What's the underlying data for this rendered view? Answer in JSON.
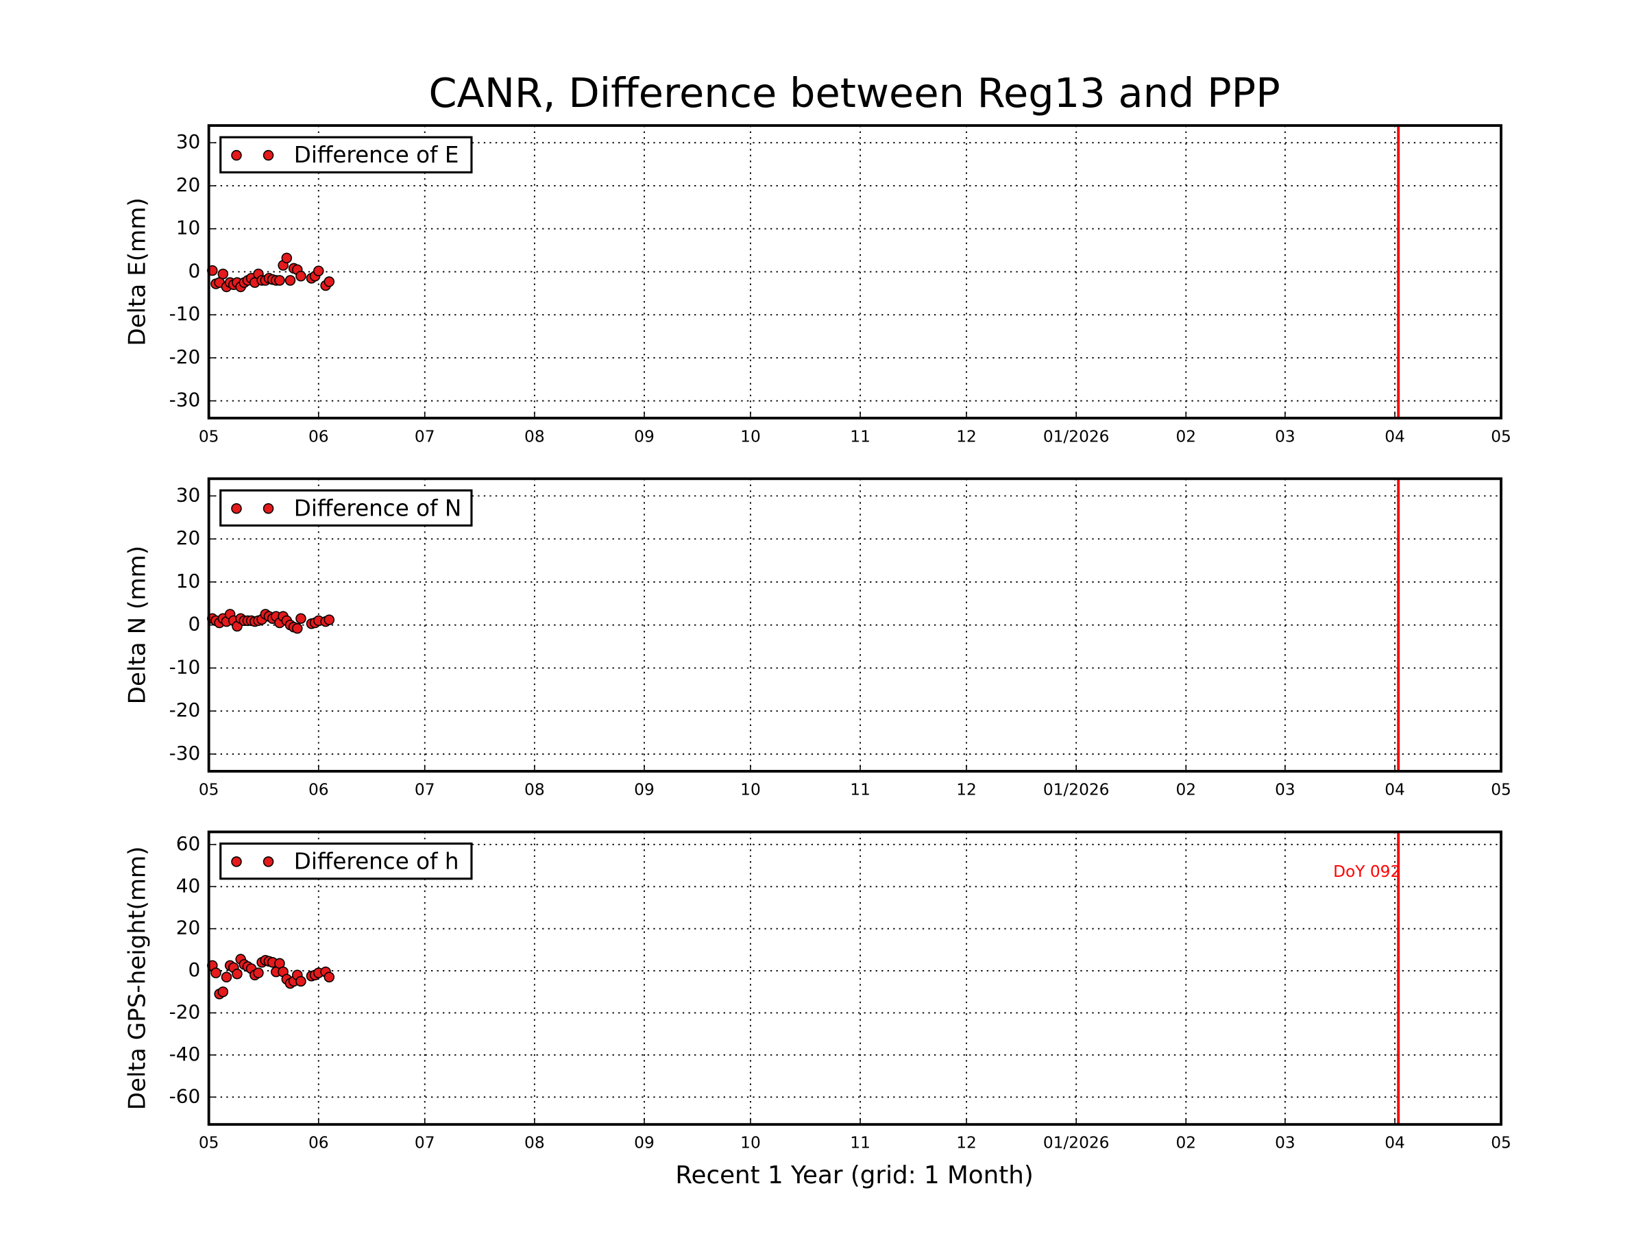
{
  "title": "CANR, Difference between Reg13 and PPP",
  "xlabel": "Recent 1 Year (grid: 1 Month)",
  "chart_data": [
    {
      "type": "scatter",
      "ylabel": "Delta E(mm)",
      "grid": true,
      "legend": "upper left",
      "xlim": [
        0,
        365
      ],
      "ylim": [
        -34,
        34
      ],
      "xticks": [
        {
          "value": 0,
          "label": "05"
        },
        {
          "value": 31,
          "label": "06"
        },
        {
          "value": 61,
          "label": "07"
        },
        {
          "value": 92,
          "label": "08"
        },
        {
          "value": 123,
          "label": "09"
        },
        {
          "value": 153,
          "label": "10"
        },
        {
          "value": 184,
          "label": "11"
        },
        {
          "value": 214,
          "label": "12"
        },
        {
          "value": 245,
          "label": "01/2026"
        },
        {
          "value": 276,
          "label": "02"
        },
        {
          "value": 304,
          "label": "03"
        },
        {
          "value": 335,
          "label": "04"
        },
        {
          "value": 365,
          "label": "05"
        }
      ],
      "yticks": [
        -30,
        -20,
        -10,
        0,
        10,
        20,
        30
      ],
      "vline": {
        "x": 336,
        "color": "#ff0000"
      },
      "series": [
        {
          "name": "Difference of E",
          "color": "#e41a1c",
          "x": [
            1,
            2,
            3,
            4,
            5,
            6,
            7,
            8,
            9,
            10,
            11,
            12,
            13,
            14,
            15,
            16,
            17,
            18,
            19,
            20,
            21,
            22,
            23,
            24,
            25,
            26,
            29,
            30,
            31,
            33,
            34
          ],
          "values": [
            0.3,
            -2.8,
            -2.5,
            -0.5,
            -3.5,
            -2.5,
            -3,
            -2.5,
            -3.5,
            -2.5,
            -2,
            -1.5,
            -2.5,
            -0.5,
            -2,
            -2,
            -1.5,
            -1.8,
            -2,
            -2,
            1.5,
            3.2,
            -2,
            0.8,
            0.5,
            -1,
            -1.5,
            -1,
            0.2,
            -3.2,
            -2.3
          ]
        }
      ]
    },
    {
      "type": "scatter",
      "ylabel": "Delta N (mm)",
      "grid": true,
      "legend": "upper left",
      "xlim": [
        0,
        365
      ],
      "ylim": [
        -34,
        34
      ],
      "xticks": [
        {
          "value": 0,
          "label": "05"
        },
        {
          "value": 31,
          "label": "06"
        },
        {
          "value": 61,
          "label": "07"
        },
        {
          "value": 92,
          "label": "08"
        },
        {
          "value": 123,
          "label": "09"
        },
        {
          "value": 153,
          "label": "10"
        },
        {
          "value": 184,
          "label": "11"
        },
        {
          "value": 214,
          "label": "12"
        },
        {
          "value": 245,
          "label": "01/2026"
        },
        {
          "value": 276,
          "label": "02"
        },
        {
          "value": 304,
          "label": "03"
        },
        {
          "value": 335,
          "label": "04"
        },
        {
          "value": 365,
          "label": "05"
        }
      ],
      "yticks": [
        -30,
        -20,
        -10,
        0,
        10,
        20,
        30
      ],
      "vline": {
        "x": 336,
        "color": "#ff0000"
      },
      "series": [
        {
          "name": "Difference of N",
          "color": "#e41a1c",
          "x": [
            1,
            2,
            3,
            4,
            5,
            6,
            7,
            8,
            9,
            10,
            11,
            12,
            13,
            14,
            15,
            16,
            17,
            18,
            19,
            20,
            21,
            22,
            23,
            24,
            25,
            26,
            29,
            30,
            31,
            33,
            34
          ],
          "values": [
            1.5,
            1,
            0.5,
            1.5,
            0.8,
            2.5,
            1,
            -0.3,
            1.5,
            1,
            1,
            1,
            0.8,
            1,
            1.3,
            2.5,
            2,
            1.5,
            2,
            0.5,
            2,
            1,
            0,
            -0.5,
            -0.8,
            1.5,
            0.3,
            0.5,
            1,
            0.8,
            1.2
          ]
        }
      ]
    },
    {
      "type": "scatter",
      "ylabel": "Delta GPS-height(mm)",
      "grid": true,
      "legend": "upper left",
      "xlim": [
        0,
        365
      ],
      "ylim": [
        -73,
        66
      ],
      "xticks": [
        {
          "value": 0,
          "label": "05"
        },
        {
          "value": 31,
          "label": "06"
        },
        {
          "value": 61,
          "label": "07"
        },
        {
          "value": 92,
          "label": "08"
        },
        {
          "value": 123,
          "label": "09"
        },
        {
          "value": 153,
          "label": "10"
        },
        {
          "value": 184,
          "label": "11"
        },
        {
          "value": 214,
          "label": "12"
        },
        {
          "value": 245,
          "label": "01/2026"
        },
        {
          "value": 276,
          "label": "02"
        },
        {
          "value": 304,
          "label": "03"
        },
        {
          "value": 335,
          "label": "04"
        },
        {
          "value": 365,
          "label": "05"
        }
      ],
      "yticks": [
        -60,
        -40,
        -20,
        0,
        20,
        40,
        60
      ],
      "vline": {
        "x": 336,
        "color": "#ff0000",
        "label": "DoY 092"
      },
      "series": [
        {
          "name": "Difference of h",
          "color": "#e41a1c",
          "x": [
            1,
            2,
            3,
            4,
            5,
            6,
            7,
            8,
            9,
            10,
            11,
            12,
            13,
            14,
            15,
            16,
            17,
            18,
            19,
            20,
            21,
            22,
            23,
            24,
            25,
            26,
            29,
            30,
            31,
            33,
            34
          ],
          "values": [
            2.5,
            -1,
            -11,
            -10,
            -3,
            2.5,
            1.5,
            -1.5,
            5.5,
            3,
            2,
            1,
            -2,
            -1,
            4,
            5,
            4.5,
            4,
            -0.5,
            3.5,
            -0.5,
            -4,
            -6,
            -5,
            -2,
            -5,
            -2.5,
            -2,
            -1,
            -0.5,
            -3
          ]
        }
      ]
    }
  ]
}
